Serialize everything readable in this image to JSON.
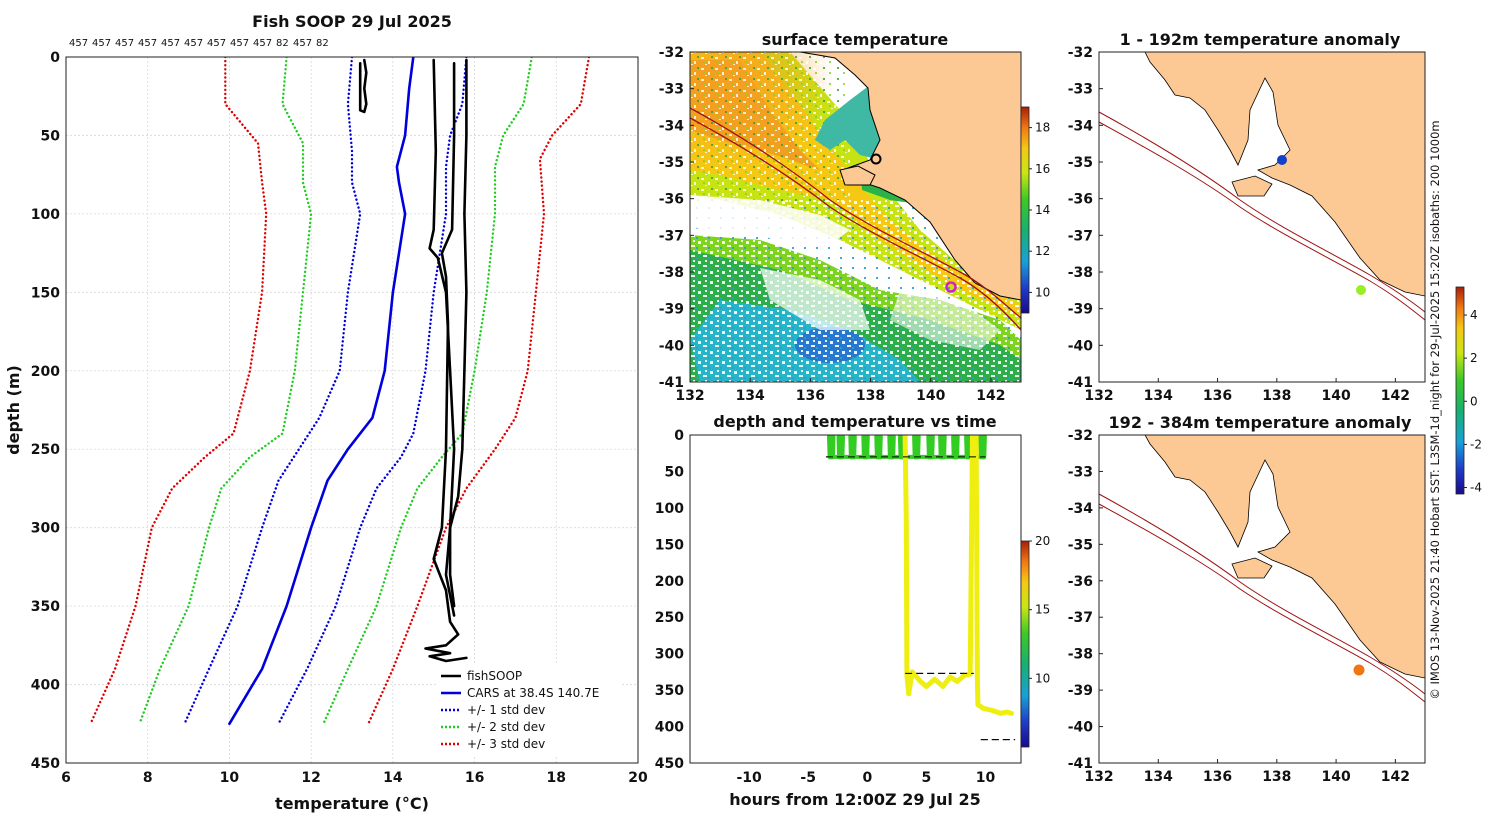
{
  "chart_data": [
    {
      "type": "line",
      "id": "profile",
      "title": "Fish SOOP 29 Jul 2025",
      "top_labels": [
        "457",
        "457",
        "457",
        "457",
        "457",
        "457",
        "457",
        "457",
        "457",
        "82",
        "457",
        "82"
      ],
      "xlabel": "temperature (°C)",
      "ylabel": "depth (m)",
      "xlim": [
        6,
        20
      ],
      "ylim": [
        450,
        0
      ],
      "xticks": [
        6,
        8,
        10,
        12,
        14,
        16,
        18,
        20
      ],
      "yticks": [
        0,
        50,
        100,
        150,
        200,
        250,
        300,
        350,
        400,
        450
      ],
      "grid": true,
      "legend": {
        "position": "bottom-right",
        "entries": [
          {
            "label": "fishSOOP",
            "color": "#000000",
            "style": "solid"
          },
          {
            "label": "CARS at 38.4S 140.7E",
            "color": "#0000dd",
            "style": "solid"
          },
          {
            "label": "+/- 1 std dev",
            "color": "#0000dd",
            "style": "dotted"
          },
          {
            "label": "+/- 2 std dev",
            "color": "#22cc22",
            "style": "dotted"
          },
          {
            "label": "+/- 3 std dev",
            "color": "#e00000",
            "style": "dotted"
          }
        ]
      },
      "series": [
        {
          "name": "CARS mean",
          "color": "#0000dd",
          "style": "solid",
          "points": [
            [
              14.5,
              0
            ],
            [
              14.4,
              20
            ],
            [
              14.3,
              50
            ],
            [
              14.1,
              70
            ],
            [
              14.15,
              80
            ],
            [
              14.3,
              100
            ],
            [
              14.0,
              150
            ],
            [
              13.8,
              200
            ],
            [
              13.5,
              230
            ],
            [
              12.9,
              250
            ],
            [
              12.4,
              270
            ],
            [
              12.0,
              300
            ],
            [
              11.4,
              350
            ],
            [
              10.8,
              390
            ],
            [
              10.0,
              425
            ]
          ]
        },
        {
          "name": "+1 std",
          "color": "#0000dd",
          "style": "dotted",
          "points": [
            [
              15.8,
              0
            ],
            [
              15.7,
              30
            ],
            [
              15.4,
              50
            ],
            [
              15.3,
              70
            ],
            [
              15.3,
              100
            ],
            [
              15.0,
              150
            ],
            [
              14.8,
              200
            ],
            [
              14.5,
              240
            ],
            [
              14.2,
              255
            ],
            [
              13.6,
              275
            ],
            [
              13.2,
              300
            ],
            [
              12.6,
              350
            ],
            [
              11.9,
              390
            ],
            [
              11.2,
              425
            ]
          ]
        },
        {
          "name": "-1 std",
          "color": "#0000dd",
          "style": "dotted",
          "points": [
            [
              13.0,
              0
            ],
            [
              12.9,
              30
            ],
            [
              13.0,
              60
            ],
            [
              13.0,
              80
            ],
            [
              13.2,
              100
            ],
            [
              12.9,
              150
            ],
            [
              12.7,
              200
            ],
            [
              12.2,
              230
            ],
            [
              11.7,
              250
            ],
            [
              11.2,
              270
            ],
            [
              10.8,
              300
            ],
            [
              10.2,
              350
            ],
            [
              9.5,
              390
            ],
            [
              8.9,
              425
            ]
          ]
        },
        {
          "name": "+2 std",
          "color": "#22cc22",
          "style": "dotted",
          "points": [
            [
              17.4,
              0
            ],
            [
              17.2,
              30
            ],
            [
              16.7,
              50
            ],
            [
              16.5,
              70
            ],
            [
              16.5,
              100
            ],
            [
              16.3,
              150
            ],
            [
              16.0,
              200
            ],
            [
              15.7,
              240
            ],
            [
              15.2,
              255
            ],
            [
              14.6,
              275
            ],
            [
              14.2,
              300
            ],
            [
              13.6,
              350
            ],
            [
              12.9,
              390
            ],
            [
              12.3,
              425
            ]
          ]
        },
        {
          "name": "-2 std",
          "color": "#22cc22",
          "style": "dotted",
          "points": [
            [
              11.4,
              0
            ],
            [
              11.3,
              30
            ],
            [
              11.8,
              55
            ],
            [
              11.8,
              80
            ],
            [
              12.0,
              100
            ],
            [
              11.8,
              150
            ],
            [
              11.6,
              200
            ],
            [
              11.3,
              240
            ],
            [
              10.5,
              255
            ],
            [
              9.8,
              275
            ],
            [
              9.5,
              300
            ],
            [
              9.0,
              350
            ],
            [
              8.3,
              390
            ],
            [
              7.8,
              425
            ]
          ]
        },
        {
          "name": "+3 std",
          "color": "#e00000",
          "style": "dotted",
          "points": [
            [
              18.8,
              0
            ],
            [
              18.6,
              30
            ],
            [
              17.9,
              50
            ],
            [
              17.6,
              65
            ],
            [
              17.7,
              100
            ],
            [
              17.5,
              150
            ],
            [
              17.3,
              200
            ],
            [
              17.0,
              230
            ],
            [
              16.5,
              250
            ],
            [
              15.8,
              275
            ],
            [
              15.3,
              300
            ],
            [
              14.6,
              350
            ],
            [
              14.0,
              390
            ],
            [
              13.4,
              425
            ]
          ]
        },
        {
          "name": "-3 std",
          "color": "#e00000",
          "style": "dotted",
          "points": [
            [
              9.9,
              0
            ],
            [
              9.9,
              30
            ],
            [
              10.7,
              55
            ],
            [
              10.8,
              80
            ],
            [
              10.9,
              100
            ],
            [
              10.8,
              150
            ],
            [
              10.5,
              200
            ],
            [
              10.1,
              240
            ],
            [
              9.4,
              255
            ],
            [
              8.6,
              275
            ],
            [
              8.1,
              300
            ],
            [
              7.7,
              350
            ],
            [
              7.2,
              390
            ],
            [
              6.6,
              425
            ]
          ]
        },
        {
          "name": "fishSOOP cast 1",
          "color": "#000000",
          "style": "solid",
          "points": [
            [
              15.8,
              2
            ],
            [
              15.8,
              50
            ],
            [
              15.75,
              100
            ],
            [
              15.8,
              150
            ],
            [
              15.75,
              200
            ],
            [
              15.7,
              250
            ],
            [
              15.6,
              280
            ],
            [
              15.4,
              300
            ],
            [
              15.4,
              330
            ],
            [
              15.5,
              350
            ]
          ]
        },
        {
          "name": "fishSOOP cast 2",
          "color": "#000000",
          "style": "solid",
          "points": [
            [
              15.0,
              2
            ],
            [
              15.05,
              60
            ],
            [
              15.0,
              110
            ],
            [
              14.9,
              122
            ],
            [
              15.1,
              128
            ],
            [
              15.3,
              150
            ],
            [
              15.4,
              200
            ],
            [
              15.5,
              250
            ],
            [
              15.4,
              300
            ],
            [
              15.3,
              330
            ],
            [
              15.5,
              356
            ]
          ]
        },
        {
          "name": "fishSOOP cast 3",
          "color": "#000000",
          "style": "solid",
          "points": [
            [
              15.5,
              4
            ],
            [
              15.5,
              50
            ],
            [
              15.45,
              110
            ],
            [
              15.2,
              125
            ],
            [
              15.3,
              140
            ],
            [
              15.35,
              170
            ],
            [
              15.3,
              250
            ],
            [
              15.2,
              300
            ],
            [
              15.0,
              320
            ],
            [
              15.3,
              340
            ],
            [
              15.4,
              360
            ],
            [
              15.6,
              368
            ],
            [
              15.3,
              375
            ],
            [
              14.8,
              377
            ],
            [
              15.4,
              380
            ],
            [
              14.9,
              382
            ],
            [
              15.3,
              385
            ],
            [
              15.8,
              383
            ]
          ]
        },
        {
          "name": "fishSOOP near-surface",
          "color": "#000000",
          "style": "solid",
          "points": [
            [
              13.3,
              2
            ],
            [
              13.35,
              10
            ],
            [
              13.3,
              20
            ],
            [
              13.35,
              30
            ],
            [
              13.3,
              35
            ],
            [
              13.2,
              34
            ],
            [
              13.2,
              20
            ],
            [
              13.2,
              4
            ]
          ]
        }
      ]
    },
    {
      "type": "map",
      "id": "sst_map",
      "title": "surface temperature",
      "xlim": [
        132,
        143
      ],
      "ylim": [
        -41,
        -32
      ],
      "xticks": [
        132,
        134,
        136,
        138,
        140,
        142
      ],
      "yticks": [
        -32,
        -33,
        -34,
        -35,
        -36,
        -37,
        -38,
        -39,
        -40,
        -41
      ],
      "colorbar": {
        "min": 9,
        "max": 19,
        "ticks": [
          10,
          12,
          14,
          16,
          18
        ]
      },
      "markers": [
        {
          "lon": 138.2,
          "lat": -34.95,
          "color": "#000000",
          "shape": "ring"
        },
        {
          "lon": 140.85,
          "lat": -38.45,
          "color": "#cc22cc",
          "shape": "ring"
        }
      ]
    },
    {
      "type": "scatter",
      "id": "time_depth",
      "title": "depth and temperature vs time",
      "xlabel": "hours from 12:00Z 29 Jul 25",
      "xlim": [
        -15,
        13
      ],
      "ylim": [
        450,
        0
      ],
      "xticks": [
        -10,
        -5,
        0,
        5,
        10
      ],
      "yticks": [
        0,
        50,
        100,
        150,
        200,
        250,
        300,
        350,
        400,
        450
      ],
      "colorbar": {
        "min": 5,
        "max": 20,
        "ticks": [
          10,
          15,
          20
        ]
      },
      "reference_lines": [
        {
          "x": [
            -3.5,
            10
          ],
          "depth": 30
        },
        {
          "x": [
            3.2,
            9.0
          ],
          "depth": 327
        },
        {
          "x": [
            9.6,
            12.5
          ],
          "depth": 418
        }
      ],
      "series": [
        {
          "name": "shallow tows",
          "color": "#33cc22",
          "tows": [
            [
              -3.2,
              -2.9
            ],
            [
              -2.4,
              -2.1
            ],
            [
              -1.4,
              -1.1
            ],
            [
              -0.3,
              0.0
            ],
            [
              0.8,
              1.1
            ],
            [
              1.9,
              2.2
            ],
            [
              2.8,
              3.1
            ],
            [
              4.0,
              4.3
            ],
            [
              5.2,
              5.5
            ],
            [
              6.2,
              6.5
            ],
            [
              7.3,
              7.6
            ],
            [
              8.4,
              8.7
            ],
            [
              9.6,
              9.9
            ]
          ],
          "depth": 30
        },
        {
          "name": "deep tow 1",
          "color": "#eeee11",
          "points": [
            [
              3.2,
              0
            ],
            [
              3.3,
              120
            ],
            [
              3.35,
              330
            ],
            [
              3.5,
              355
            ],
            [
              3.8,
              325
            ],
            [
              4.5,
              338
            ],
            [
              5.0,
              345
            ],
            [
              5.7,
              335
            ],
            [
              6.4,
              345
            ],
            [
              7.0,
              332
            ],
            [
              7.6,
              338
            ],
            [
              8.2,
              330
            ],
            [
              8.7,
              328
            ],
            [
              8.9,
              0
            ]
          ]
        },
        {
          "name": "deep tow 2",
          "color": "#eeee11",
          "points": [
            [
              9.2,
              0
            ],
            [
              9.25,
              150
            ],
            [
              9.3,
              328
            ],
            [
              9.35,
              370
            ],
            [
              9.8,
              375
            ],
            [
              10.6,
              378
            ],
            [
              11.3,
              382
            ],
            [
              11.8,
              380
            ],
            [
              12.2,
              382
            ]
          ]
        }
      ]
    },
    {
      "type": "map",
      "id": "anom_upper",
      "title": "1 - 192m temperature anomaly",
      "xlim": [
        132,
        143
      ],
      "ylim": [
        -41,
        -32
      ],
      "xticks": [
        132,
        134,
        136,
        138,
        140,
        142
      ],
      "yticks": [
        -32,
        -33,
        -34,
        -35,
        -36,
        -37,
        -38,
        -39,
        -40,
        -41
      ],
      "markers": [
        {
          "lon": 138.25,
          "lat": -34.95,
          "color": "#1040cc"
        },
        {
          "lon": 140.9,
          "lat": -38.45,
          "color": "#99ee22"
        }
      ]
    },
    {
      "type": "map",
      "id": "anom_lower",
      "title": "192 - 384m temperature anomaly",
      "xlim": [
        132,
        143
      ],
      "ylim": [
        -41,
        -32
      ],
      "xticks": [
        132,
        134,
        136,
        138,
        140,
        142
      ],
      "yticks": [
        -32,
        -33,
        -34,
        -35,
        -36,
        -37,
        -38,
        -39,
        -40,
        -41
      ],
      "colorbar": {
        "min": -4.3,
        "max": 5.3,
        "ticks": [
          -4,
          -2,
          0,
          2,
          4
        ]
      },
      "markers": [
        {
          "lon": 140.9,
          "lat": -38.45,
          "color": "#ee7711"
        }
      ]
    }
  ],
  "footer_note": "© IMOS 13-Nov-2025 21:40 Hobart SST: L3SM-1d_night for 29-Jul-2025 15:20Z isobaths: 200  1000m"
}
